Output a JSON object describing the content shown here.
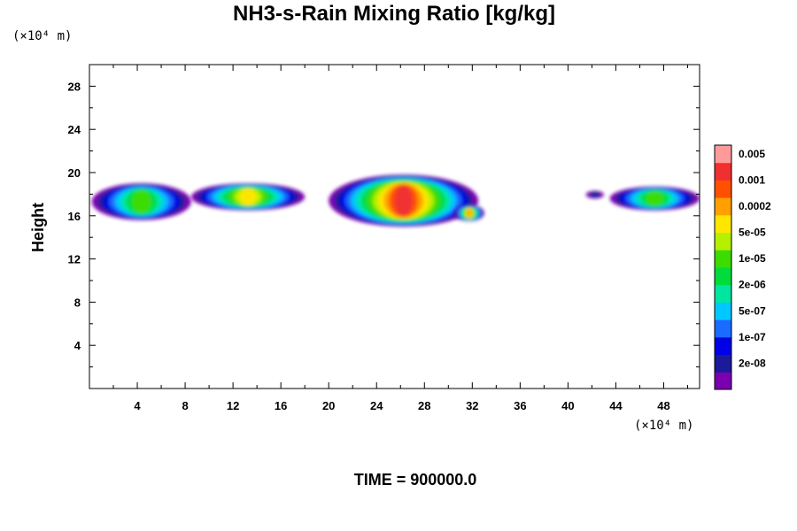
{
  "chart_data": {
    "type": "heatmap",
    "title": "NH3-s-Rain Mixing Ratio [kg/kg]",
    "ylabel": "Height",
    "y_unit": "(×10⁴ m)",
    "x_unit": "(×10⁴ m)",
    "xlim": [
      0,
      51
    ],
    "ylim": [
      0,
      30
    ],
    "x_ticks": [
      4,
      8,
      12,
      16,
      20,
      24,
      28,
      32,
      36,
      40,
      44,
      48
    ],
    "y_ticks": [
      4,
      8,
      12,
      16,
      20,
      24,
      28
    ],
    "x_tick_labels": [
      "4",
      "8",
      "12",
      "16",
      "20",
      "24",
      "28",
      "32",
      "36",
      "40",
      "44",
      "48"
    ],
    "y_tick_labels": [
      "4",
      "8",
      "12",
      "16",
      "20",
      "24",
      "28"
    ],
    "colorbar": {
      "levels": [
        "2e-08",
        "1e-07",
        "5e-07",
        "2e-06",
        "1e-05",
        "5e-05",
        "0.0002",
        "0.001",
        "0.005"
      ],
      "colors": [
        "#7a00b0",
        "#1a1a9a",
        "#0000e6",
        "#1a6bff",
        "#00c8ff",
        "#00e6a0",
        "#00dc3c",
        "#3cdc00",
        "#b4f000",
        "#ffe600",
        "#ffa000",
        "#ff5000",
        "#f03030",
        "#ff9a9a"
      ]
    },
    "regions": [
      {
        "x": [
          0.2,
          8.5
        ],
        "y": [
          15.6,
          19.0
        ],
        "peak_level": "1e-05"
      },
      {
        "x": [
          8.5,
          18.0
        ],
        "y": [
          16.5,
          19.0
        ],
        "peak_level": "5e-05"
      },
      {
        "x": [
          20.0,
          32.5
        ],
        "y": [
          15.0,
          19.8
        ],
        "peak_level": "0.001"
      },
      {
        "x": [
          30.5,
          33.0
        ],
        "y": [
          15.5,
          17.0
        ],
        "peak_level": "0.0002"
      },
      {
        "x": [
          41.5,
          43.0
        ],
        "y": [
          17.6,
          18.3
        ],
        "peak_level": "2e-08"
      },
      {
        "x": [
          43.5,
          51.0
        ],
        "y": [
          16.5,
          18.7
        ],
        "peak_level": "1e-05"
      }
    ]
  },
  "time_label": "TIME = 900000.0"
}
